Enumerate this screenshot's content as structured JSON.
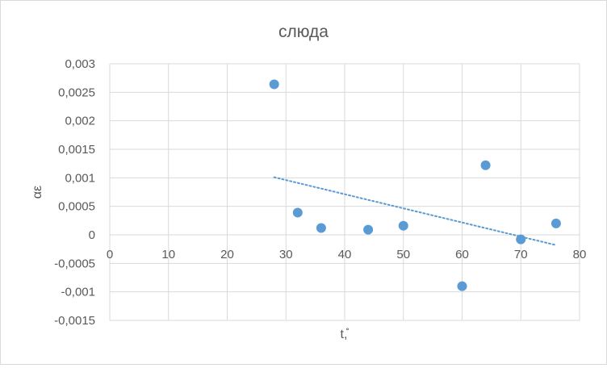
{
  "chart_data": {
    "type": "scatter",
    "title": "слюда",
    "xlabel": "t,̊",
    "ylabel": "αε",
    "xlim": [
      0,
      80
    ],
    "ylim": [
      -0.0015,
      0.003
    ],
    "x_ticks": [
      0,
      10,
      20,
      30,
      40,
      50,
      60,
      70,
      80
    ],
    "x_tick_labels": [
      "0",
      "10",
      "20",
      "30",
      "40",
      "50",
      "60",
      "70",
      "80"
    ],
    "y_ticks": [
      0.003,
      0.0025,
      0.002,
      0.0015,
      0.001,
      0.0005,
      0,
      -0.0005,
      -0.001,
      -0.0015
    ],
    "y_tick_labels": [
      "0,003",
      "0,0025",
      "0,002",
      "0,0015",
      "0,001",
      "0,0005",
      "0",
      "-0,0005",
      "-0,001",
      "-0,0015"
    ],
    "grid": true,
    "legend": "none",
    "series": [
      {
        "x": [
          28,
          32,
          36,
          44,
          50,
          60,
          64,
          70,
          76
        ],
        "y": [
          0.00264,
          0.00039,
          0.00012,
          9e-05,
          0.00016,
          -0.0009,
          0.00122,
          -8e-05,
          0.0002
        ],
        "color": "#5b9bd5"
      }
    ],
    "trendline": {
      "type": "linear",
      "x": [
        28,
        76
      ],
      "y": [
        0.00101,
        -0.00018
      ],
      "color": "#5b9bd5",
      "style": "dotted"
    },
    "colors": {
      "gridline": "#d9d9d9",
      "text": "#595959",
      "marker": "#5b9bd5"
    }
  }
}
